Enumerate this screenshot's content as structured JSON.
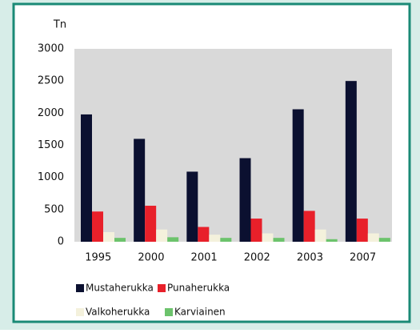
{
  "chart_data": {
    "type": "bar",
    "y_label": "Tn",
    "categories": [
      "1995",
      "2000",
      "2001",
      "2002",
      "2003",
      "2007"
    ],
    "series": [
      {
        "name": "Mustaherukka",
        "color": "#0b1030",
        "values": [
          1980,
          1600,
          1090,
          1300,
          2060,
          2500
        ]
      },
      {
        "name": "Punaherukka",
        "color": "#e8202a",
        "values": [
          470,
          560,
          230,
          360,
          480,
          360
        ]
      },
      {
        "name": "Valkoherukka",
        "color": "#f4f1dc",
        "values": [
          150,
          190,
          110,
          130,
          190,
          130
        ]
      },
      {
        "name": "Karviainen",
        "color": "#6cc36c",
        "values": [
          60,
          70,
          60,
          60,
          40,
          60
        ]
      }
    ],
    "ylim": [
      0,
      3000
    ],
    "yticks": [
      0,
      500,
      1000,
      1500,
      2000,
      2500,
      3000
    ],
    "grid": false
  }
}
